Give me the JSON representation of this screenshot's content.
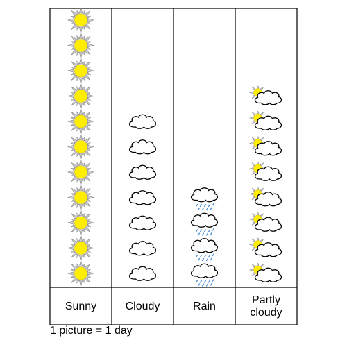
{
  "chart_data": {
    "type": "pictograph",
    "categories": [
      "Sunny",
      "Cloudy",
      "Rain",
      "Partly cloudy"
    ],
    "category_display": [
      [
        "Sunny"
      ],
      [
        "Cloudy"
      ],
      [
        "Rain"
      ],
      [
        "Partly",
        "cloudy"
      ]
    ],
    "values": [
      11,
      7,
      4,
      8
    ],
    "icons": [
      "sun-icon",
      "cloud-icon",
      "rain-cloud-icon",
      "partly-cloudy-icon"
    ],
    "key": "1 picture = 1 day",
    "title": "",
    "xlabel": "",
    "ylabel": ""
  },
  "colors": {
    "sun_fill": "#ffee00",
    "sun_rays": "#c8c8c8",
    "rain_drops": "#4a8fd6",
    "outline": "#000000"
  }
}
